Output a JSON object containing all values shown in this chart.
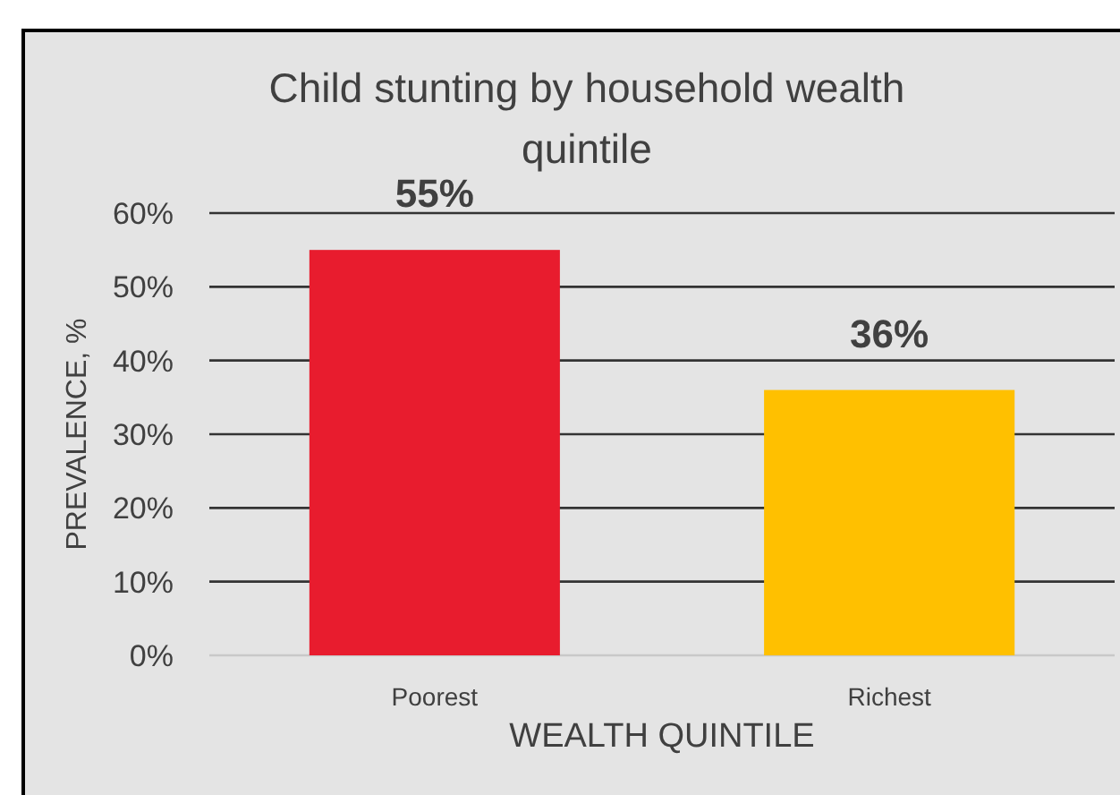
{
  "chart_data": {
    "type": "bar",
    "title": "Child stunting by household wealth quintile",
    "xlabel": "WEALTH QUINTILE",
    "ylabel": "PREVALENCE, %",
    "categories": [
      "Poorest",
      "Richest"
    ],
    "values": [
      55,
      36
    ],
    "colors": [
      "#e81c2e",
      "#ffc000"
    ],
    "value_labels": [
      "55%",
      "36%"
    ],
    "ylim": [
      0,
      60
    ],
    "yticks": [
      {
        "value": 0,
        "label": "0%"
      },
      {
        "value": 10,
        "label": "10%"
      },
      {
        "value": 20,
        "label": "20%"
      },
      {
        "value": 30,
        "label": "30%"
      },
      {
        "value": 40,
        "label": "40%"
      },
      {
        "value": 50,
        "label": "50%"
      },
      {
        "value": 60,
        "label": "60%"
      }
    ],
    "grid": "y"
  }
}
